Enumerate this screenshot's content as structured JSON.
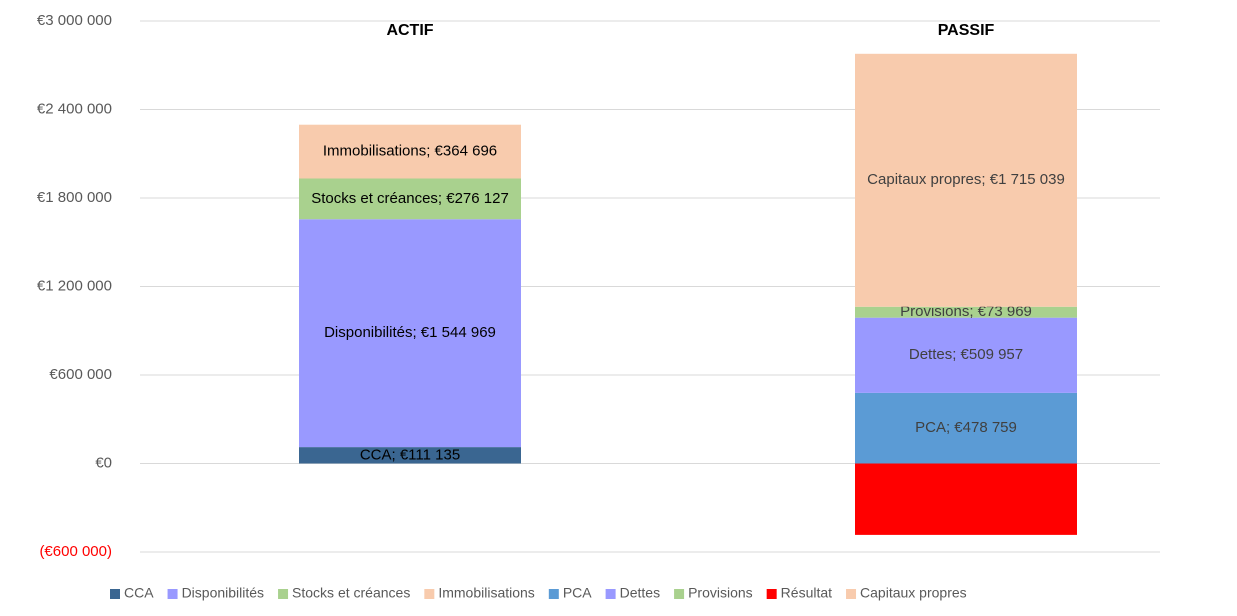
{
  "chart_data": {
    "type": "stacked_bar",
    "categories": [
      "ACTIF",
      "PASSIF"
    ],
    "series": [
      {
        "name": "CCA",
        "color": "#3a6691",
        "values": [
          111135,
          null
        ],
        "value_labels": [
          "CCA; €111 135",
          null
        ]
      },
      {
        "name": "Disponibilités",
        "color": "#9999ff",
        "values": [
          1544969,
          null
        ],
        "value_labels": [
          "Disponibilités; €1 544 969",
          null
        ]
      },
      {
        "name": "Stocks et créances",
        "color": "#a9d18e",
        "values": [
          276127,
          null
        ],
        "value_labels": [
          "Stocks et créances; €276 127",
          null
        ]
      },
      {
        "name": "Immobilisations",
        "color": "#f8cbad",
        "values": [
          364696,
          null
        ],
        "value_labels": [
          "Immobilisations; €364 696",
          null
        ]
      },
      {
        "name": "PCA",
        "color": "#5b9bd5",
        "values": [
          null,
          478759
        ],
        "value_labels": [
          null,
          "PCA; €478 759"
        ]
      },
      {
        "name": "Dettes",
        "color": "#9999ff",
        "values": [
          null,
          509957
        ],
        "value_labels": [
          null,
          "Dettes; €509 957"
        ]
      },
      {
        "name": "Provisions",
        "color": "#a9d18e",
        "values": [
          null,
          73969
        ],
        "value_labels": [
          null,
          "Provisions; €73 969"
        ]
      },
      {
        "name": "Résultat",
        "color": "#ff0000",
        "values": [
          null,
          -484000
        ],
        "value_labels": [
          null,
          null
        ]
      },
      {
        "name": "Capitaux propres",
        "color": "#f8cbad",
        "values": [
          null,
          1715039
        ],
        "value_labels": [
          null,
          "Capitaux propres; €1 715 039"
        ]
      }
    ],
    "ylim": [
      -600000,
      3000000
    ],
    "yticks": [
      {
        "value": -600000,
        "label": "(€600 000)"
      },
      {
        "value": 0,
        "label": "€0"
      },
      {
        "value": 600000,
        "label": "€600 000"
      },
      {
        "value": 1200000,
        "label": "€1 200 000"
      },
      {
        "value": 1800000,
        "label": "€1 800 000"
      },
      {
        "value": 2400000,
        "label": "€2 400 000"
      },
      {
        "value": 3000000,
        "label": "€3 000 000"
      }
    ],
    "negative_tick_color": "#ff0000",
    "grid": true,
    "legend": "bottom"
  }
}
